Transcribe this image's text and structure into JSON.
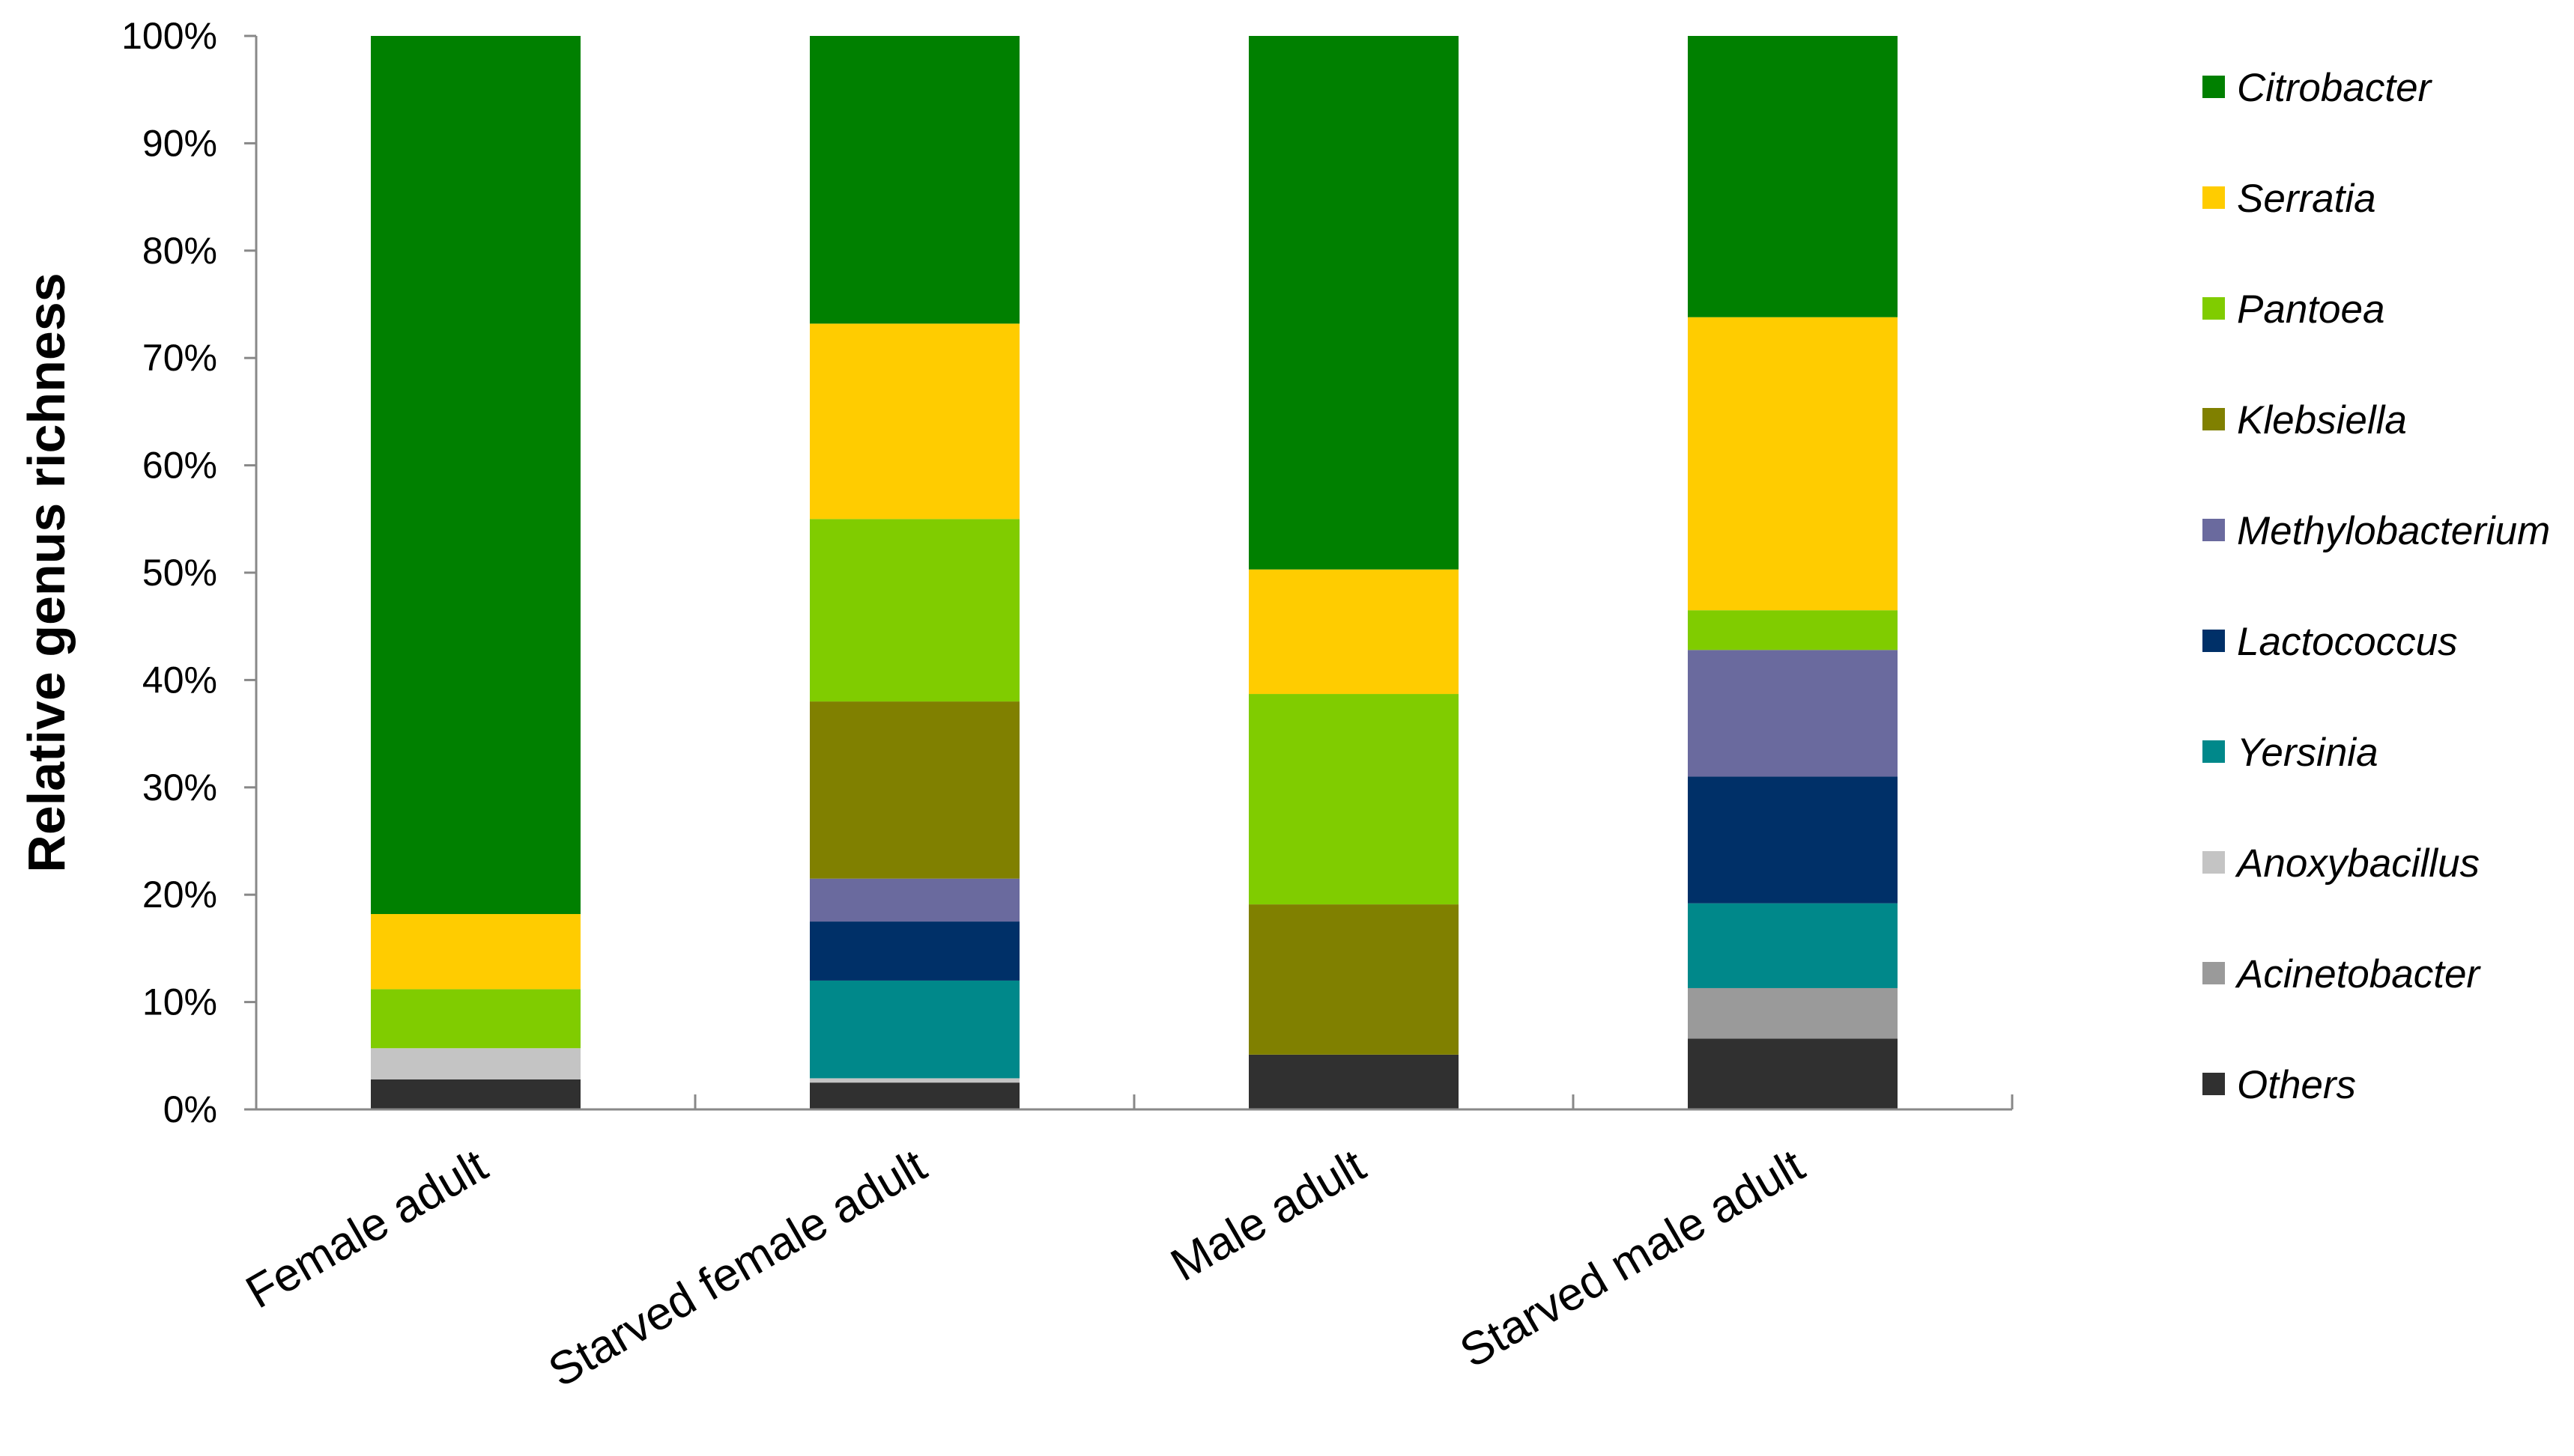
{
  "chart_data": {
    "type": "bar",
    "stacked": true,
    "percent": true,
    "title": "",
    "xlabel": "",
    "ylabel": "Relative genus richness",
    "ylim": [
      0,
      100
    ],
    "yticks": [
      "0%",
      "10%",
      "20%",
      "30%",
      "40%",
      "50%",
      "60%",
      "70%",
      "80%",
      "90%",
      "100%"
    ],
    "categories": [
      "Female adult",
      "Starved female adult",
      "Male adult",
      "Starved male adult"
    ],
    "legend_position": "right",
    "series": [
      {
        "name": "Others",
        "color": "#303030",
        "values": [
          2.8,
          2.5,
          5.1,
          6.6
        ]
      },
      {
        "name": "Acinetobacter",
        "color": "#9a9a9a",
        "values": [
          0,
          0,
          0,
          4.7
        ]
      },
      {
        "name": "Anoxybacillus",
        "color": "#c4c4c4",
        "values": [
          2.9,
          0.4,
          0,
          0
        ]
      },
      {
        "name": "Yersinia",
        "color": "#00888a",
        "values": [
          0,
          9.1,
          0,
          7.9
        ]
      },
      {
        "name": "Lactococcus",
        "color": "#003068",
        "values": [
          0,
          5.5,
          0,
          11.8
        ]
      },
      {
        "name": "Methylobacterium",
        "color": "#6a6a9e",
        "values": [
          0,
          4.0,
          0,
          11.8
        ]
      },
      {
        "name": "Klebsiella",
        "color": "#808000",
        "values": [
          0,
          16.5,
          14.0,
          0
        ]
      },
      {
        "name": "Pantoea",
        "color": "#80cc00",
        "values": [
          5.5,
          17.0,
          19.6,
          3.7
        ]
      },
      {
        "name": "Serratia",
        "color": "#ffcc00",
        "values": [
          7.0,
          18.2,
          11.6,
          27.3
        ]
      },
      {
        "name": "Citrobacter",
        "color": "#008000",
        "values": [
          81.8,
          26.8,
          49.7,
          26.2
        ]
      }
    ]
  }
}
